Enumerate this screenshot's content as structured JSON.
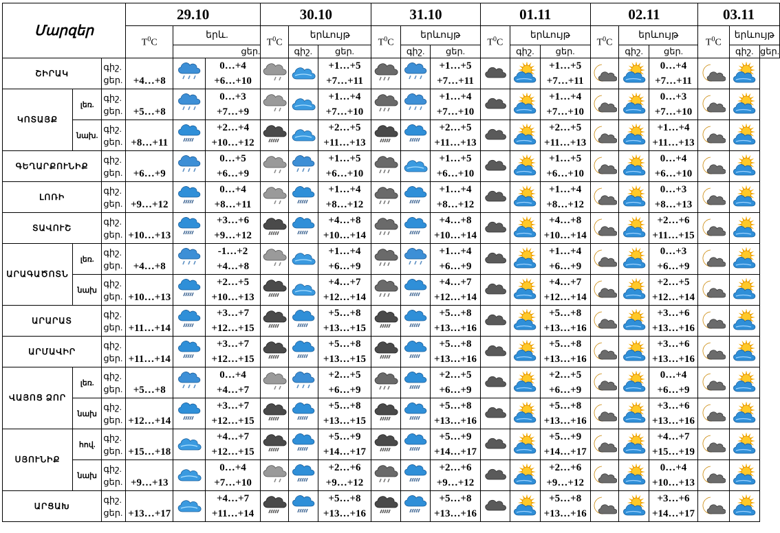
{
  "header": {
    "regions_label": "Մարզեր",
    "dates": [
      "29.10",
      "30.10",
      "31.10",
      "01.11",
      "02.11",
      "03.11"
    ],
    "temp_label_parts": [
      "T",
      "0",
      "C"
    ],
    "weather_label": "երևույթ",
    "weather_label_short": "երև.",
    "night_label": "գիշ.",
    "day_label": "ցեր."
  },
  "rows": [
    {
      "region": "ՇԻՐԱԿ",
      "zone": null,
      "night": "գիշ.",
      "day": "ցեր.",
      "days": [
        {
          "t_night": "",
          "t_day": "+4…+8",
          "icons": [
            "rain-snow"
          ]
        },
        {
          "t_night": "0…+4",
          "t_day": "+6…+10",
          "icons": [
            "cloud-snow",
            "cloud-sun-blue"
          ]
        },
        {
          "t_night": "+1…+5",
          "t_day": "+7…+11",
          "icons": [
            "cloud-snow-dark",
            "rain-snow"
          ]
        },
        {
          "t_night": "+1…+5",
          "t_day": "+7…+11",
          "icons": [
            "cloud-dark",
            "sun-cloud"
          ]
        },
        {
          "t_night": "+1…+5",
          "t_day": "+7…+11",
          "icons": [
            "moon-cloud",
            "sun-cloud"
          ]
        },
        {
          "t_night": "0…+4",
          "t_day": "+7…+11",
          "icons": [
            "moon-cloud",
            "sun-cloud"
          ]
        }
      ]
    },
    {
      "region": "ԿՈՏԱՅՔ",
      "zone": "լեռ.",
      "night": "գիշ.",
      "day": "ցեր.",
      "days": [
        {
          "t_night": "",
          "t_day": "+5…+8",
          "icons": [
            "rain-snow"
          ]
        },
        {
          "t_night": "0…+3",
          "t_day": "+7…+9",
          "icons": [
            "cloud-snow",
            "cloud-sun-blue"
          ]
        },
        {
          "t_night": "+1…+4",
          "t_day": "+7…+10",
          "icons": [
            "cloud-snow-dark",
            "rain-snow"
          ]
        },
        {
          "t_night": "+1…+4",
          "t_day": "+7…+10",
          "icons": [
            "cloud-dark",
            "sun-cloud"
          ]
        },
        {
          "t_night": "+1…+4",
          "t_day": "+7…+10",
          "icons": [
            "moon-cloud",
            "sun-cloud"
          ]
        },
        {
          "t_night": "0…+3",
          "t_day": "+7…+10",
          "icons": [
            "moon-cloud",
            "sun-cloud"
          ]
        }
      ]
    },
    {
      "region": "",
      "zone": "նախ.",
      "night": "գիշ.",
      "day": "ցեր.",
      "days": [
        {
          "t_night": "",
          "t_day": "+8…+11",
          "icons": [
            "rain-blue"
          ]
        },
        {
          "t_night": "+2…+4",
          "t_day": "+10…+12",
          "icons": [
            "cloud-rain-dark",
            "cloud-sun-blue"
          ]
        },
        {
          "t_night": "+2…+5",
          "t_day": "+11…+13",
          "icons": [
            "cloud-rain-dark",
            "rain-blue"
          ]
        },
        {
          "t_night": "+2…+5",
          "t_day": "+11…+13",
          "icons": [
            "cloud-dark",
            "sun-cloud"
          ]
        },
        {
          "t_night": "+2…+5",
          "t_day": "+11…+13",
          "icons": [
            "moon-cloud",
            "sun-cloud"
          ]
        },
        {
          "t_night": "+1…+4",
          "t_day": "+11…+13",
          "icons": [
            "moon-cloud",
            "sun-cloud"
          ]
        }
      ]
    },
    {
      "region": "ԳԵՂԱՐՔՈՒՆԻՔ",
      "zone": null,
      "night": "գիշ.",
      "day": "ցեր.",
      "days": [
        {
          "t_night": "",
          "t_day": "+6…+9",
          "icons": [
            "rain-snow"
          ]
        },
        {
          "t_night": "0…+5",
          "t_day": "+6…+9",
          "icons": [
            "cloud-snow",
            "rain-snow"
          ]
        },
        {
          "t_night": "+1…+5",
          "t_day": "+6…+10",
          "icons": [
            "cloud-snow-dark",
            "cloud-sun-blue"
          ]
        },
        {
          "t_night": "+1…+5",
          "t_day": "+6…+10",
          "icons": [
            "cloud-dark",
            "sun-cloud"
          ]
        },
        {
          "t_night": "+1…+5",
          "t_day": "+6…+10",
          "icons": [
            "moon-cloud",
            "sun-cloud"
          ]
        },
        {
          "t_night": "0…+4",
          "t_day": "+6…+10",
          "icons": [
            "moon-cloud",
            "sun-cloud"
          ]
        }
      ]
    },
    {
      "region": "ԼՈՌԻ",
      "zone": null,
      "night": "գիշ.",
      "day": "ցեր.",
      "days": [
        {
          "t_night": "",
          "t_day": "+9…+12",
          "icons": [
            "rain-blue"
          ]
        },
        {
          "t_night": "0…+4",
          "t_day": "+8…+11",
          "icons": [
            "cloud-snow",
            "rain-blue"
          ]
        },
        {
          "t_night": "+1…+4",
          "t_day": "+8…+12",
          "icons": [
            "cloud-snow-dark",
            "rain-blue"
          ]
        },
        {
          "t_night": "+1…+4",
          "t_day": "+8…+12",
          "icons": [
            "cloud-dark",
            "sun-cloud"
          ]
        },
        {
          "t_night": "+1…+4",
          "t_day": "+8…+12",
          "icons": [
            "moon-cloud",
            "sun-cloud"
          ]
        },
        {
          "t_night": "0…+3",
          "t_day": "+8…+13",
          "icons": [
            "moon-cloud",
            "sun-cloud"
          ]
        }
      ]
    },
    {
      "region": "ՏԱՎՈՒՇ",
      "zone": null,
      "night": "գիշ.",
      "day": "ցեր.",
      "days": [
        {
          "t_night": "",
          "t_day": "+10…+13",
          "icons": [
            "rain-blue"
          ]
        },
        {
          "t_night": "+3…+6",
          "t_day": "+9…+12",
          "icons": [
            "cloud-rain-dark",
            "rain-blue"
          ]
        },
        {
          "t_night": "+4…+8",
          "t_day": "+10…+14",
          "icons": [
            "cloud-snow-dark",
            "rain-blue"
          ]
        },
        {
          "t_night": "+4…+8",
          "t_day": "+10…+14",
          "icons": [
            "cloud-dark",
            "sun-cloud"
          ]
        },
        {
          "t_night": "+4…+8",
          "t_day": "+10…+14",
          "icons": [
            "moon-cloud",
            "sun-cloud"
          ]
        },
        {
          "t_night": "+2…+6",
          "t_day": "+11…+15",
          "icons": [
            "moon-cloud",
            "sun-cloud"
          ]
        }
      ]
    },
    {
      "region": "ԱՐԱԳԱԾՈՏՆ",
      "zone": "լեռ.",
      "night": "գիշ.",
      "day": "ցեր.",
      "days": [
        {
          "t_night": "",
          "t_day": "+4…+8",
          "icons": [
            "rain-snow"
          ]
        },
        {
          "t_night": "-1…+2",
          "t_day": "+4…+8",
          "icons": [
            "cloud-snow",
            "cloud-sun-blue"
          ]
        },
        {
          "t_night": "+1…+4",
          "t_day": "+6…+9",
          "icons": [
            "cloud-snow-dark",
            "rain-snow"
          ]
        },
        {
          "t_night": "+1…+4",
          "t_day": "+6…+9",
          "icons": [
            "cloud-dark",
            "sun-cloud"
          ]
        },
        {
          "t_night": "+1…+4",
          "t_day": "+6…+9",
          "icons": [
            "moon-cloud",
            "sun-cloud"
          ]
        },
        {
          "t_night": "0…+3",
          "t_day": "+6…+9",
          "icons": [
            "moon-cloud",
            "sun-cloud"
          ]
        }
      ]
    },
    {
      "region": "",
      "zone": "նախ",
      "night": "գիշ.",
      "day": "ցեր.",
      "days": [
        {
          "t_night": "",
          "t_day": "+10…+13",
          "icons": [
            "rain-blue"
          ]
        },
        {
          "t_night": "+2…+5",
          "t_day": "+10…+13",
          "icons": [
            "cloud-rain-dark",
            "cloud-sun-blue"
          ]
        },
        {
          "t_night": "+4…+7",
          "t_day": "+12…+14",
          "icons": [
            "cloud-snow-dark",
            "rain-blue"
          ]
        },
        {
          "t_night": "+4…+7",
          "t_day": "+12…+14",
          "icons": [
            "cloud-dark",
            "sun-cloud"
          ]
        },
        {
          "t_night": "+4…+7",
          "t_day": "+12…+14",
          "icons": [
            "moon-cloud",
            "sun-cloud"
          ]
        },
        {
          "t_night": "+2…+5",
          "t_day": "+12…+14",
          "icons": [
            "moon-cloud",
            "sun-cloud"
          ]
        }
      ]
    },
    {
      "region": "ԱՐԱՐԱՏ",
      "zone": null,
      "night": "գիշ.",
      "day": "ցեր.",
      "days": [
        {
          "t_night": "",
          "t_day": "+11…+14",
          "icons": [
            "rain-blue"
          ]
        },
        {
          "t_night": "+3…+7",
          "t_day": "+12…+15",
          "icons": [
            "cloud-rain-dark",
            "rain-blue"
          ]
        },
        {
          "t_night": "+5…+8",
          "t_day": "+13…+15",
          "icons": [
            "cloud-rain-dark",
            "rain-blue"
          ]
        },
        {
          "t_night": "+5…+8",
          "t_day": "+13…+16",
          "icons": [
            "cloud-dark",
            "sun-cloud"
          ]
        },
        {
          "t_night": "+5…+8",
          "t_day": "+13…+16",
          "icons": [
            "moon-cloud",
            "sun-cloud"
          ]
        },
        {
          "t_night": "+3…+6",
          "t_day": "+13…+16",
          "icons": [
            "moon-cloud",
            "sun-cloud"
          ]
        }
      ]
    },
    {
      "region": "ԱՐՄԱՎԻՐ",
      "zone": null,
      "night": "գիշ.",
      "day": "ցեր.",
      "days": [
        {
          "t_night": "",
          "t_day": "+11…+14",
          "icons": [
            "rain-blue"
          ]
        },
        {
          "t_night": "+3…+7",
          "t_day": "+12…+15",
          "icons": [
            "cloud-rain-dark",
            "rain-blue"
          ]
        },
        {
          "t_night": "+5…+8",
          "t_day": "+13…+15",
          "icons": [
            "cloud-rain-dark",
            "rain-blue"
          ]
        },
        {
          "t_night": "+5…+8",
          "t_day": "+13…+16",
          "icons": [
            "cloud-dark",
            "sun-cloud"
          ]
        },
        {
          "t_night": "+5…+8",
          "t_day": "+13…+16",
          "icons": [
            "moon-cloud",
            "sun-cloud"
          ]
        },
        {
          "t_night": "+3…+6",
          "t_day": "+13…+16",
          "icons": [
            "moon-cloud",
            "sun-cloud"
          ]
        }
      ]
    },
    {
      "region": "ՎԱՅՈՑ ՁՈՐ",
      "zone": "լեռ.",
      "night": "գիշ.",
      "day": "ցեր.",
      "days": [
        {
          "t_night": "",
          "t_day": "+5…+8",
          "icons": [
            "rain-snow"
          ]
        },
        {
          "t_night": "0…+4",
          "t_day": "+4…+7",
          "icons": [
            "cloud-snow",
            "rain-snow"
          ]
        },
        {
          "t_night": "+2…+5",
          "t_day": "+6…+9",
          "icons": [
            "cloud-snow-dark",
            "rain-blue"
          ]
        },
        {
          "t_night": "+2…+5",
          "t_day": "+6…+9",
          "icons": [
            "cloud-dark",
            "sun-cloud"
          ]
        },
        {
          "t_night": "+2…+5",
          "t_day": "+6…+9",
          "icons": [
            "moon-cloud",
            "sun-cloud"
          ]
        },
        {
          "t_night": "0…+4",
          "t_day": "+6…+9",
          "icons": [
            "moon-cloud",
            "sun-cloud"
          ]
        }
      ]
    },
    {
      "region": "",
      "zone": "նախ",
      "night": "գիշ.",
      "day": "ցեր.",
      "days": [
        {
          "t_night": "",
          "t_day": "+12…+14",
          "icons": [
            "rain-blue"
          ]
        },
        {
          "t_night": "+3…+7",
          "t_day": "+12…+15",
          "icons": [
            "cloud-rain-dark",
            "rain-blue"
          ]
        },
        {
          "t_night": "+5…+8",
          "t_day": "+13…+15",
          "icons": [
            "cloud-rain-dark",
            "rain-blue"
          ]
        },
        {
          "t_night": "+5…+8",
          "t_day": "+13…+16",
          "icons": [
            "cloud-dark",
            "sun-cloud"
          ]
        },
        {
          "t_night": "+5…+8",
          "t_day": "+13…+16",
          "icons": [
            "moon-cloud",
            "sun-cloud"
          ]
        },
        {
          "t_night": "+3…+6",
          "t_day": "+13…+16",
          "icons": [
            "moon-cloud",
            "sun-cloud"
          ]
        }
      ]
    },
    {
      "region": "ՍՅՈՒՆԻՔ",
      "zone": "հով.",
      "night": "գիշ.",
      "day": "ցեր.",
      "days": [
        {
          "t_night": "",
          "t_day": "+15…+18",
          "icons": [
            "cloud-sun-blue"
          ]
        },
        {
          "t_night": "+4…+7",
          "t_day": "+12…+15",
          "icons": [
            "cloud-rain-dark",
            "rain-blue"
          ]
        },
        {
          "t_night": "+5…+9",
          "t_day": "+14…+17",
          "icons": [
            "cloud-rain-dark",
            "rain-blue"
          ]
        },
        {
          "t_night": "+5…+9",
          "t_day": "+14…+17",
          "icons": [
            "cloud-dark",
            "sun-cloud"
          ]
        },
        {
          "t_night": "+5…+9",
          "t_day": "+14…+17",
          "icons": [
            "moon-cloud",
            "sun-cloud"
          ]
        },
        {
          "t_night": "+4…+7",
          "t_day": "+15…+19",
          "icons": [
            "moon-cloud",
            "sun-cloud"
          ]
        }
      ]
    },
    {
      "region": "",
      "zone": "նախ",
      "night": "գիշ.",
      "day": "ցեր.",
      "days": [
        {
          "t_night": "",
          "t_day": "+9…+13",
          "icons": [
            "cloud-sun-blue"
          ]
        },
        {
          "t_night": "0…+4",
          "t_day": "+7…+10",
          "icons": [
            "cloud-snow",
            "rain-blue"
          ]
        },
        {
          "t_night": "+2…+6",
          "t_day": "+9…+12",
          "icons": [
            "cloud-snow-dark",
            "rain-blue"
          ]
        },
        {
          "t_night": "+2…+6",
          "t_day": "+9…+12",
          "icons": [
            "cloud-dark",
            "sun-cloud"
          ]
        },
        {
          "t_night": "+2…+6",
          "t_day": "+9…+12",
          "icons": [
            "moon-cloud",
            "sun-cloud"
          ]
        },
        {
          "t_night": "0…+4",
          "t_day": "+10…+13",
          "icons": [
            "moon-cloud",
            "sun-cloud"
          ]
        }
      ]
    },
    {
      "region": "ԱՐՑԱԽ",
      "zone": null,
      "night": "գիշ.",
      "day": "ցեր.",
      "days": [
        {
          "t_night": "",
          "t_day": "+13…+17",
          "icons": [
            "cloud-sun-blue"
          ]
        },
        {
          "t_night": "+4…+7",
          "t_day": "+11…+14",
          "icons": [
            "cloud-rain-dark",
            "rain-blue"
          ]
        },
        {
          "t_night": "+5…+8",
          "t_day": "+13…+16",
          "icons": [
            "cloud-rain-dark",
            "rain-blue"
          ]
        },
        {
          "t_night": "+5…+8",
          "t_day": "+13…+16",
          "icons": [
            "cloud-dark",
            "sun-cloud"
          ]
        },
        {
          "t_night": "+5…+8",
          "t_day": "+13…+16",
          "icons": [
            "moon-cloud",
            "sun-cloud"
          ]
        },
        {
          "t_night": "+3…+6",
          "t_day": "+14…+17",
          "icons": [
            "moon-cloud",
            "sun-cloud"
          ]
        }
      ]
    }
  ]
}
